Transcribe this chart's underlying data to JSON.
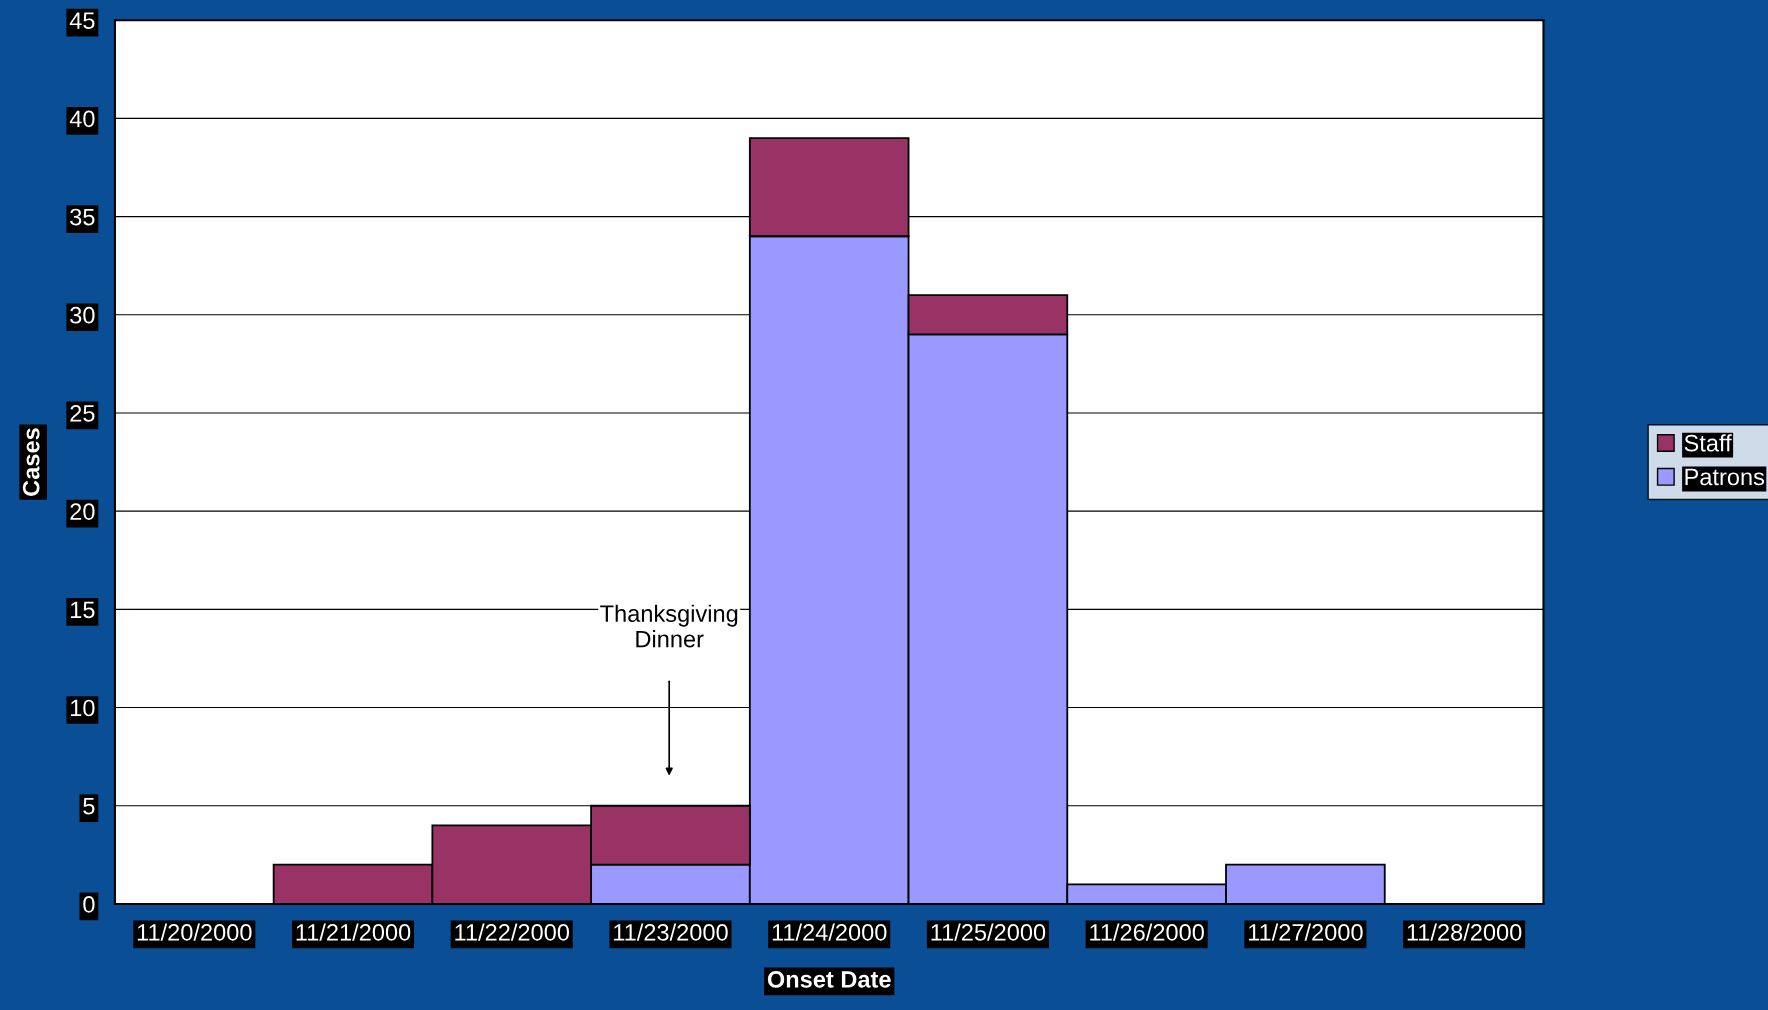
{
  "chart_data": {
    "type": "bar",
    "stacked": true,
    "xlabel": "Onset Date",
    "ylabel": "Cases",
    "categories": [
      "11/20/2000",
      "11/21/2000",
      "11/22/2000",
      "11/23/2000",
      "11/24/2000",
      "11/25/2000",
      "11/26/2000",
      "11/27/2000",
      "11/28/2000"
    ],
    "series": [
      {
        "name": "Patrons",
        "color": "#9999ff",
        "values": [
          0,
          0,
          0,
          2,
          34,
          29,
          1,
          2,
          0
        ]
      },
      {
        "name": "Staff",
        "color": "#993366",
        "values": [
          0,
          2,
          4,
          3,
          5,
          2,
          0,
          0,
          0
        ]
      }
    ],
    "ylim": [
      0,
      45
    ],
    "yticks": [
      0,
      5,
      10,
      15,
      20,
      25,
      30,
      35,
      40,
      45
    ],
    "grid": "y",
    "legend": "right",
    "annotations": [
      "Thanksgiving\nDinner"
    ]
  }
}
